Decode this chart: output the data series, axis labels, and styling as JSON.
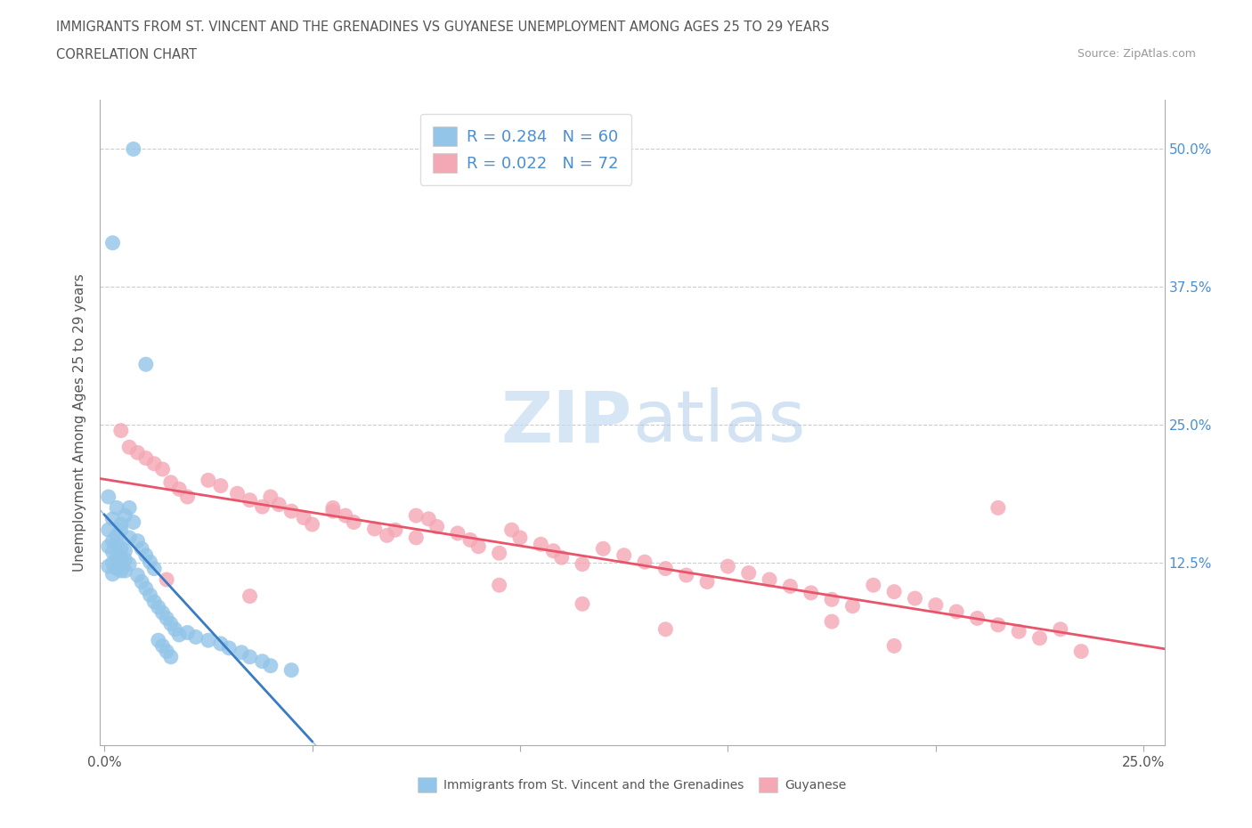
{
  "title_line1": "IMMIGRANTS FROM ST. VINCENT AND THE GRENADINES VS GUYANESE UNEMPLOYMENT AMONG AGES 25 TO 29 YEARS",
  "title_line2": "CORRELATION CHART",
  "source": "Source: ZipAtlas.com",
  "ylabel": "Unemployment Among Ages 25 to 29 years",
  "xlim": [
    -0.001,
    0.255
  ],
  "ylim": [
    -0.04,
    0.545
  ],
  "xticks": [
    0.0,
    0.05,
    0.1,
    0.15,
    0.2,
    0.25
  ],
  "xtick_labels": [
    "0.0%",
    "",
    "",
    "",
    "",
    "25.0%"
  ],
  "ytick_positions": [
    0.0,
    0.125,
    0.25,
    0.375,
    0.5
  ],
  "right_ytick_labels": [
    "",
    "12.5%",
    "25.0%",
    "37.5%",
    "50.0%"
  ],
  "legend1_R": "0.284",
  "legend1_N": "60",
  "legend2_R": "0.022",
  "legend2_N": "72",
  "blue_color": "#92C5E8",
  "pink_color": "#F4A7B5",
  "blue_line_color": "#3A7CC3",
  "pink_line_color": "#E8556A",
  "grid_color": "#CCCCCC",
  "spine_color": "#AAAAAA",
  "text_color": "#555555",
  "right_label_color": "#4A8FD4",
  "watermark_color": "#C5DCF0",
  "blue_scatter_x": [
    0.007,
    0.002,
    0.01,
    0.001,
    0.003,
    0.002,
    0.004,
    0.001,
    0.003,
    0.002,
    0.001,
    0.004,
    0.002,
    0.003,
    0.005,
    0.002,
    0.001,
    0.003,
    0.004,
    0.002,
    0.006,
    0.005,
    0.007,
    0.004,
    0.006,
    0.003,
    0.005,
    0.004,
    0.006,
    0.005,
    0.008,
    0.009,
    0.01,
    0.011,
    0.012,
    0.008,
    0.009,
    0.01,
    0.011,
    0.012,
    0.013,
    0.014,
    0.015,
    0.016,
    0.017,
    0.018,
    0.013,
    0.014,
    0.015,
    0.016,
    0.02,
    0.022,
    0.025,
    0.028,
    0.03,
    0.033,
    0.035,
    0.038,
    0.04,
    0.045
  ],
  "blue_scatter_y": [
    0.5,
    0.415,
    0.305,
    0.185,
    0.175,
    0.165,
    0.16,
    0.155,
    0.15,
    0.145,
    0.14,
    0.138,
    0.135,
    0.13,
    0.128,
    0.125,
    0.122,
    0.12,
    0.118,
    0.115,
    0.175,
    0.168,
    0.162,
    0.155,
    0.148,
    0.142,
    0.136,
    0.13,
    0.124,
    0.118,
    0.145,
    0.138,
    0.132,
    0.126,
    0.12,
    0.114,
    0.108,
    0.102,
    0.096,
    0.09,
    0.085,
    0.08,
    0.075,
    0.07,
    0.065,
    0.06,
    0.055,
    0.05,
    0.045,
    0.04,
    0.062,
    0.058,
    0.055,
    0.052,
    0.048,
    0.044,
    0.04,
    0.036,
    0.032,
    0.028
  ],
  "pink_scatter_x": [
    0.004,
    0.006,
    0.008,
    0.01,
    0.012,
    0.014,
    0.016,
    0.018,
    0.02,
    0.025,
    0.028,
    0.032,
    0.035,
    0.038,
    0.04,
    0.042,
    0.045,
    0.048,
    0.05,
    0.055,
    0.058,
    0.06,
    0.065,
    0.068,
    0.07,
    0.075,
    0.078,
    0.08,
    0.085,
    0.088,
    0.09,
    0.095,
    0.098,
    0.1,
    0.105,
    0.108,
    0.11,
    0.115,
    0.12,
    0.125,
    0.13,
    0.135,
    0.14,
    0.145,
    0.15,
    0.155,
    0.16,
    0.165,
    0.17,
    0.175,
    0.18,
    0.185,
    0.19,
    0.195,
    0.2,
    0.205,
    0.21,
    0.215,
    0.22,
    0.225,
    0.015,
    0.035,
    0.055,
    0.075,
    0.095,
    0.115,
    0.135,
    0.175,
    0.19,
    0.215,
    0.23,
    0.235
  ],
  "pink_scatter_y": [
    0.245,
    0.23,
    0.225,
    0.22,
    0.215,
    0.21,
    0.198,
    0.192,
    0.185,
    0.2,
    0.195,
    0.188,
    0.182,
    0.176,
    0.185,
    0.178,
    0.172,
    0.166,
    0.16,
    0.172,
    0.168,
    0.162,
    0.156,
    0.15,
    0.155,
    0.148,
    0.165,
    0.158,
    0.152,
    0.146,
    0.14,
    0.134,
    0.155,
    0.148,
    0.142,
    0.136,
    0.13,
    0.124,
    0.138,
    0.132,
    0.126,
    0.12,
    0.114,
    0.108,
    0.122,
    0.116,
    0.11,
    0.104,
    0.098,
    0.092,
    0.086,
    0.105,
    0.099,
    0.093,
    0.087,
    0.081,
    0.075,
    0.069,
    0.063,
    0.057,
    0.11,
    0.095,
    0.175,
    0.168,
    0.105,
    0.088,
    0.065,
    0.072,
    0.05,
    0.175,
    0.065,
    0.045
  ]
}
